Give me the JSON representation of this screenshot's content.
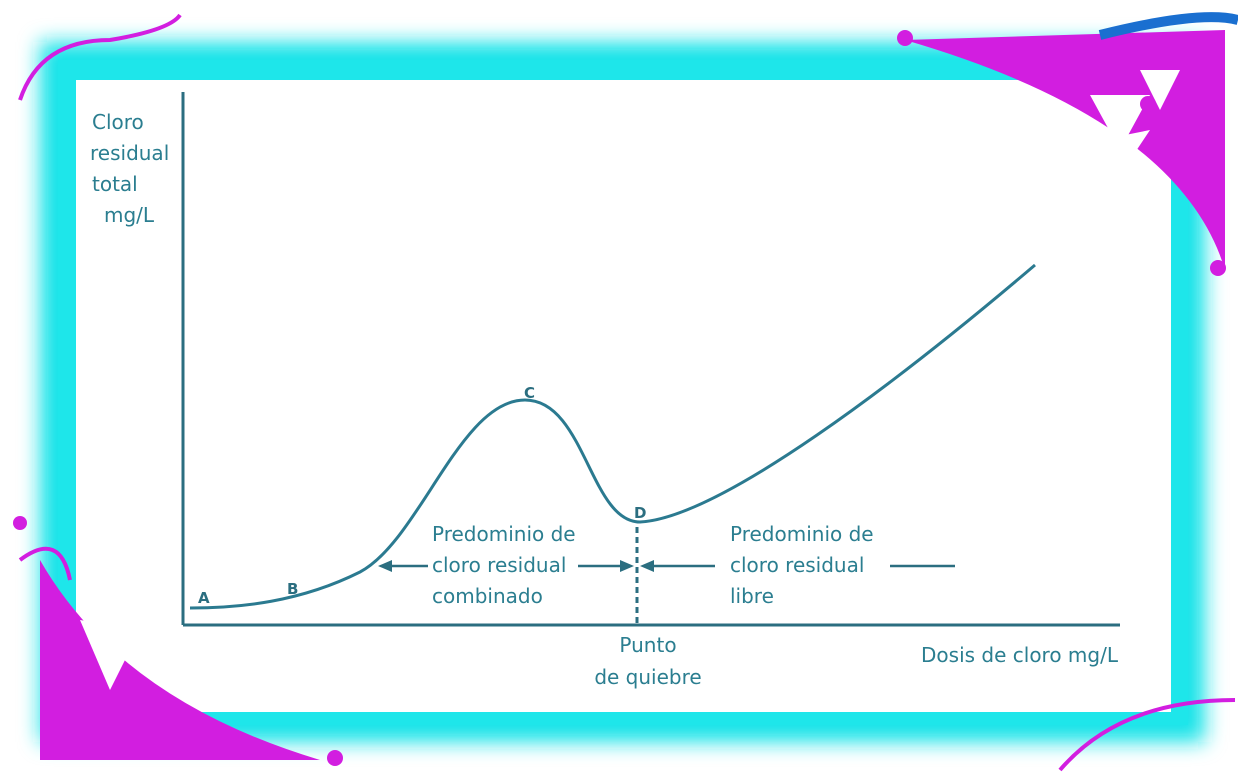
{
  "y_axis_label": [
    "Cloro",
    "residual",
    "total",
    "mg/L"
  ],
  "x_axis_label": "Dosis de cloro mg/L",
  "points": [
    "A",
    "B",
    "C",
    "D"
  ],
  "combined_note": [
    "Predominio de",
    "cloro residual",
    "combinado"
  ],
  "free_note": [
    "Predominio de",
    "cloro residual",
    "libre"
  ],
  "breakpoint_note": [
    "Punto",
    "de quiebre"
  ]
}
